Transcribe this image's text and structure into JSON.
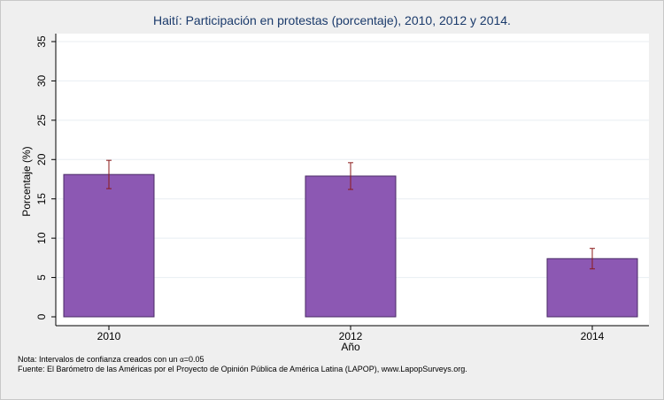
{
  "chart_data": {
    "type": "bar",
    "title": "Haití: Participación en protestas (porcentaje), 2010, 2012 y 2014.",
    "xlabel": "Año",
    "ylabel": "Porcentaje (%)",
    "categories": [
      "2010",
      "2012",
      "2014"
    ],
    "values": [
      18.1,
      17.9,
      7.4
    ],
    "ci_lower": [
      16.3,
      16.2,
      6.1
    ],
    "ci_upper": [
      19.9,
      19.6,
      8.7
    ],
    "ylim": [
      0,
      35
    ],
    "yticks": [
      "0",
      "5",
      "10",
      "15",
      "20",
      "25",
      "30",
      "35"
    ],
    "ytick_values": [
      0,
      5,
      10,
      15,
      20,
      25,
      30,
      35
    ],
    "grid": true,
    "legend": "none",
    "colors": {
      "bar_fill": "#8c58b3",
      "bar_stroke": "#4a2a66",
      "error_bar": "#8b1a1a",
      "grid": "#e8eef2",
      "plot_bg": "#ffffff",
      "page_bg": "#efefef",
      "title": "#1a3a6b"
    }
  },
  "notes": {
    "line1_prefix": "Nota: Intervalos de confianza creados con un ",
    "alpha_symbol": "α",
    "line1_suffix": "=0.05",
    "line2": "Fuente: El Barómetro de las Américas por el Proyecto de Opinión Pública de América Latina (LAPOP), www.LapopSurveys.org."
  }
}
